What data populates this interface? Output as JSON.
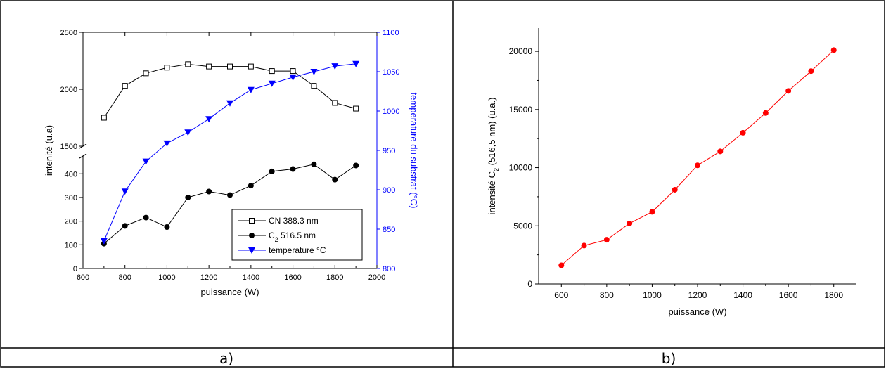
{
  "captions": {
    "a": "a)",
    "b": "b)"
  },
  "chart_data": [
    {
      "type": "line",
      "title": "",
      "xlabel": "puissance (W)",
      "ylabel": "intenité (u.a)",
      "y2label_parts": [
        "temperature du substrat (",
        "°C)"
      ],
      "xlim": [
        600,
        2000
      ],
      "xticks": [
        600,
        800,
        1000,
        1200,
        1400,
        1600,
        1800,
        2000
      ],
      "y_lower_range": [
        0,
        475
      ],
      "y_lower_ticks": [
        0,
        100,
        200,
        300,
        400
      ],
      "y_upper_range": [
        1500,
        2500
      ],
      "y_upper_ticks": [
        1500,
        2000,
        2500
      ],
      "y2lim": [
        800,
        1100
      ],
      "y2ticks": [
        800,
        850,
        900,
        950,
        1000,
        1050,
        1100
      ],
      "legend_position": "bottom-right",
      "series": [
        {
          "name": "CN 388.3 nm",
          "axis": "left",
          "marker": "open-square",
          "color": "#000000",
          "x": [
            700,
            800,
            900,
            1000,
            1100,
            1200,
            1300,
            1400,
            1500,
            1600,
            1700,
            1800,
            1900
          ],
          "y": [
            1750,
            2030,
            2140,
            2190,
            2220,
            2200,
            2200,
            2200,
            2160,
            2160,
            2030,
            1880,
            1830
          ]
        },
        {
          "name_main": "C",
          "name_sub": "2",
          "name_rest": " 516.5 nm",
          "axis": "left",
          "marker": "filled-circle",
          "color": "#000000",
          "x": [
            700,
            800,
            900,
            1000,
            1100,
            1200,
            1300,
            1400,
            1500,
            1600,
            1700,
            1800,
            1900
          ],
          "y": [
            105,
            180,
            215,
            175,
            300,
            325,
            310,
            350,
            410,
            420,
            440,
            375,
            435
          ]
        },
        {
          "name": "temperature °C",
          "axis": "right",
          "marker": "filled-triangle-down",
          "color": "#0000ff",
          "x": [
            700,
            800,
            900,
            1000,
            1100,
            1200,
            1300,
            1400,
            1500,
            1600,
            1700,
            1800,
            1900
          ],
          "y": [
            835,
            898,
            936,
            959,
            973,
            990,
            1010,
            1027,
            1035,
            1043,
            1050,
            1057,
            1060
          ]
        }
      ]
    },
    {
      "type": "line",
      "title": "",
      "xlabel": "puissance (W)",
      "ylabel_parts": [
        "intensité C",
        "2",
        " (516,5 nm) (u.a.)"
      ],
      "xlim": [
        500,
        1900
      ],
      "xticks": [
        600,
        800,
        1000,
        1200,
        1400,
        1600,
        1800
      ],
      "ylim": [
        0,
        22000
      ],
      "yticks": [
        0,
        5000,
        10000,
        15000,
        20000
      ],
      "series": [
        {
          "color": "#ff0000",
          "marker": "filled-circle",
          "x": [
            600,
            700,
            800,
            900,
            1000,
            1100,
            1200,
            1300,
            1400,
            1500,
            1600,
            1700,
            1800
          ],
          "y": [
            1600,
            3300,
            3800,
            5200,
            6200,
            8100,
            10200,
            11400,
            13000,
            14700,
            16600,
            18300,
            20100
          ]
        }
      ]
    }
  ]
}
